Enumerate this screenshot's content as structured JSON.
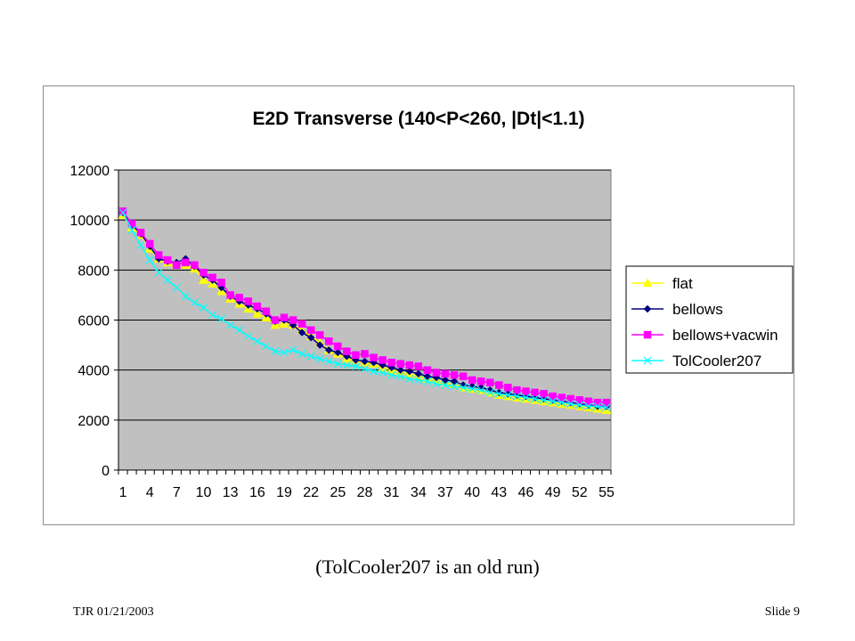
{
  "slide": {
    "caption": "(TolCooler207 is an old run)",
    "footer_left": "TJR  01/21/2003",
    "footer_right": "Slide 9"
  },
  "chart_data": {
    "type": "line",
    "title": "E2D Transverse    (140<P<260, |Dt|<1.1)",
    "xlabel": "",
    "ylabel": "",
    "ylim": [
      0,
      12000
    ],
    "yticks": [
      0,
      2000,
      4000,
      6000,
      8000,
      10000,
      12000
    ],
    "xtick_labels": [
      "1",
      "4",
      "7",
      "10",
      "13",
      "16",
      "19",
      "22",
      "25",
      "28",
      "31",
      "34",
      "37",
      "40",
      "43",
      "46",
      "49",
      "52",
      "55"
    ],
    "x": [
      1,
      2,
      3,
      4,
      5,
      6,
      7,
      8,
      9,
      10,
      11,
      12,
      13,
      14,
      15,
      16,
      17,
      18,
      19,
      20,
      21,
      22,
      23,
      24,
      25,
      26,
      27,
      28,
      29,
      30,
      31,
      32,
      33,
      34,
      35,
      36,
      37,
      38,
      39,
      40,
      41,
      42,
      43,
      44,
      45,
      46,
      47,
      48,
      49,
      50,
      51,
      52,
      53,
      54,
      55
    ],
    "grid": "horizontal",
    "plot_background": "#c0c0c0",
    "legend_position": "right",
    "series": [
      {
        "name": "flat",
        "color": "#ffff00",
        "marker": "triangle",
        "values": [
          10200,
          9700,
          9400,
          8850,
          8450,
          8300,
          8250,
          8200,
          8050,
          7600,
          7450,
          7150,
          6850,
          6650,
          6450,
          6250,
          6100,
          5800,
          5850,
          5800,
          5600,
          5350,
          5100,
          4800,
          4650,
          4450,
          4400,
          4300,
          4250,
          4100,
          4000,
          3950,
          3850,
          3750,
          3650,
          3600,
          3500,
          3450,
          3300,
          3250,
          3200,
          3100,
          3000,
          2950,
          2900,
          2850,
          2800,
          2750,
          2700,
          2650,
          2600,
          2550,
          2500,
          2450,
          2400
        ]
      },
      {
        "name": "bellows",
        "color": "#000080",
        "marker": "diamond",
        "values": [
          10300,
          9800,
          9450,
          8950,
          8450,
          8350,
          8300,
          8450,
          8150,
          7800,
          7600,
          7300,
          6950,
          6750,
          6600,
          6450,
          6250,
          5950,
          6000,
          5800,
          5500,
          5300,
          5000,
          4800,
          4700,
          4550,
          4400,
          4350,
          4300,
          4200,
          4100,
          4000,
          3950,
          3850,
          3750,
          3700,
          3600,
          3550,
          3400,
          3350,
          3300,
          3200,
          3100,
          3050,
          3000,
          2950,
          2900,
          2850,
          2800,
          2750,
          2700,
          2650,
          2600,
          2550,
          2550
        ]
      },
      {
        "name": "bellows+vacwin",
        "color": "#ff00ff",
        "marker": "square",
        "values": [
          10350,
          9850,
          9500,
          9050,
          8600,
          8400,
          8200,
          8300,
          8200,
          7900,
          7700,
          7500,
          7000,
          6900,
          6750,
          6550,
          6350,
          6000,
          6100,
          6000,
          5850,
          5600,
          5400,
          5150,
          4950,
          4750,
          4600,
          4650,
          4500,
          4400,
          4300,
          4250,
          4200,
          4150,
          4000,
          3900,
          3850,
          3800,
          3750,
          3600,
          3550,
          3500,
          3400,
          3300,
          3200,
          3150,
          3100,
          3050,
          2950,
          2900,
          2850,
          2800,
          2750,
          2700,
          2700
        ]
      },
      {
        "name": "TolCooler207",
        "color": "#00ffff",
        "marker": "x",
        "values": [
          10300,
          9600,
          9000,
          8400,
          7900,
          7600,
          7300,
          6950,
          6700,
          6500,
          6200,
          6050,
          5800,
          5600,
          5350,
          5150,
          4950,
          4750,
          4700,
          4800,
          4650,
          4550,
          4450,
          4350,
          4250,
          4200,
          4150,
          4050,
          3950,
          3900,
          3800,
          3750,
          3650,
          3600,
          3550,
          3450,
          3400,
          3350,
          3300,
          3250,
          3200,
          3100,
          3050,
          3000,
          2950,
          2900,
          2850,
          2800,
          2750,
          2700,
          2650,
          2600,
          2550,
          2550,
          2500
        ]
      }
    ]
  }
}
